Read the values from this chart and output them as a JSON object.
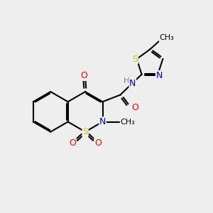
{
  "bg_color": "#eeeeee",
  "atom_colors": {
    "C": "#000000",
    "N": "#0000cc",
    "O": "#ff0000",
    "S": "#cccc00",
    "H": "#708090"
  },
  "bond_color": "#000000",
  "bond_lw": 1.5,
  "dbo": 0.055,
  "fig_w": 3.0,
  "fig_h": 3.0,
  "dpi": 100
}
